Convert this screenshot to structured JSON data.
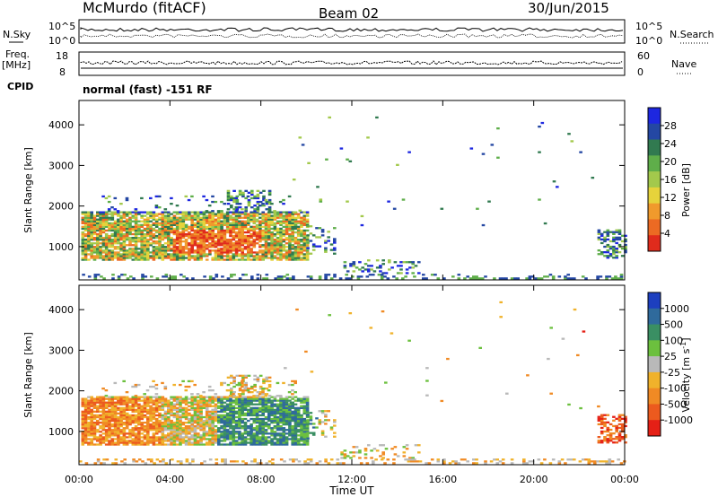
{
  "header": {
    "station": "McMurdo (fitACF)",
    "beam": "Beam 02",
    "date": "30/Jun/2015",
    "mode": "normal (fast) -151 RF"
  },
  "top_panels": {
    "nsky_label": "N.Sky",
    "nsky_ticks": [
      "10^5",
      "10^0"
    ],
    "nsearch_label": "N.Search",
    "nsearch_ticks": [
      "10^5",
      "10^0"
    ],
    "freq_label_1": "Freq.",
    "freq_label_2": "[MHz]",
    "freq_ticks": [
      "18",
      "8"
    ],
    "nave_label": "Nave",
    "nave_ticks": [
      "60",
      "0"
    ],
    "cpid_label": "CPID"
  },
  "chart_data": [
    {
      "type": "heatmap",
      "name": "power",
      "ylabel": "Slant Range [km]",
      "ylim": [
        180,
        4600
      ],
      "yticks": [
        "1000",
        "2000",
        "3000",
        "4000"
      ],
      "xlim": [
        0,
        24
      ],
      "colorbar": {
        "label": "Power [dB]",
        "ticks": [
          "4",
          "8",
          "12",
          "16",
          "20",
          "24",
          "28"
        ],
        "colors": [
          "#1d27e0",
          "#2447a3",
          "#317a50",
          "#5fae4a",
          "#a3c94c",
          "#e6d33b",
          "#f09a2c",
          "#ec6a23",
          "#e02b1c"
        ]
      }
    },
    {
      "type": "heatmap",
      "name": "velocity",
      "ylabel": "Slant Range [km]",
      "ylim": [
        180,
        4600
      ],
      "yticks": [
        "1000",
        "2000",
        "3000",
        "4000"
      ],
      "xlim": [
        0,
        24
      ],
      "xlabel": "Time UT",
      "xticks": [
        "00:00",
        "04:00",
        "08:00",
        "12:00",
        "16:00",
        "20:00",
        "00:00"
      ],
      "colorbar": {
        "label": "Velocity [m s",
        "label_sup": "-1",
        "label_end": "]",
        "ticks": [
          "1000",
          "500",
          "100",
          "25",
          "-25",
          "-100",
          "-500",
          "-1000"
        ],
        "colors": [
          "#1d3fbf",
          "#2f6a9c",
          "#3a8f63",
          "#6cc03e",
          "#b9b9b9",
          "#f0b22b",
          "#f08a24",
          "#ec5a1e",
          "#e52016"
        ]
      }
    }
  ]
}
